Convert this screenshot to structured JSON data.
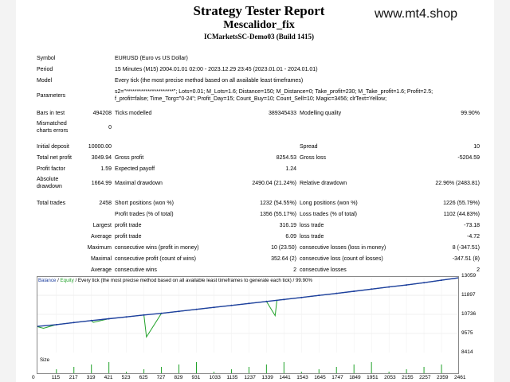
{
  "header": {
    "title": "Strategy Tester Report",
    "expert": "Mescalidor_fix",
    "server": "ICMarketsSC-Demo03 (Build 1415)",
    "watermark": "www.mt4.shop"
  },
  "info": {
    "symbol_label": "Symbol",
    "symbol_value": "EURUSD (Euro vs US Dollar)",
    "period_label": "Period",
    "period_value": "15 Minutes (M15) 2004.01.01 02:00 - 2023.12.29 23:45 (2023.01.01 - 2024.01.01)",
    "model_label": "Model",
    "model_value": "Every tick (the most precise method based on all available least timeframes)",
    "params_label": "Parameters",
    "params_value": "s2=\"**********************\"; Lots=0.01; M_Lots=1.6; Distance=150; M_Distance=0; Take_profit=230; M_Take_profit=1.6; Profit=2.5; f_profit=false; Time_Torg=\"0-24\"; Profit_Day=15; Count_Buy=10; Count_Sell=10; Magic=3456; clrText=Yellow;"
  },
  "bars": {
    "bars_label": "Bars in test",
    "bars_value": "494208",
    "ticks_label": "Ticks modelled",
    "ticks_value": "389345433",
    "quality_label": "Modelling quality",
    "quality_value": "99.90%",
    "mismatch_label": "Mismatched charts errors",
    "mismatch_value": "0"
  },
  "stats": {
    "initial_deposit_label": "Initial deposit",
    "initial_deposit_value": "10000.00",
    "spread_label": "Spread",
    "spread_value": "10",
    "net_profit_label": "Total net profit",
    "net_profit_value": "3049.94",
    "gross_profit_label": "Gross profit",
    "gross_profit_value": "8254.53",
    "gross_loss_label": "Gross loss",
    "gross_loss_value": "-5204.59",
    "profit_factor_label": "Profit factor",
    "profit_factor_value": "1.59",
    "expected_payoff_label": "Expected payoff",
    "expected_payoff_value": "1.24",
    "abs_dd_label": "Absolute drawdown",
    "abs_dd_value": "1664.99",
    "max_dd_label": "Maximal drawdown",
    "max_dd_value": "2490.04 (21.24%)",
    "rel_dd_label": "Relative drawdown",
    "rel_dd_value": "22.96% (2483.81)"
  },
  "trades": {
    "total_label": "Total trades",
    "total_value": "2458",
    "short_label": "Short positions (won %)",
    "short_value": "1232 (54.55%)",
    "long_label": "Long positions (won %)",
    "long_value": "1226 (55.79%)",
    "profit_trades_label": "Profit trades (% of total)",
    "profit_trades_value": "1356 (55.17%)",
    "loss_trades_label": "Loss trades (% of total)",
    "loss_trades_value": "1102 (44.83%)",
    "largest_label": "Largest",
    "largest_profit_label": "profit trade",
    "largest_profit_value": "316.19",
    "largest_loss_label": "loss trade",
    "largest_loss_value": "-73.18",
    "average_label": "Average",
    "avg_profit_label": "profit trade",
    "avg_profit_value": "6.09",
    "avg_loss_label": "loss trade",
    "avg_loss_value": "-4.72",
    "maximum_label": "Maximum",
    "max_wins_label": "consecutive wins (profit in money)",
    "max_wins_value": "10 (23.50)",
    "max_losses_label": "consecutive losses (loss in money)",
    "max_losses_value": "8 (-347.51)",
    "maximal_label": "Maximal",
    "maximal_profit_label": "consecutive profit (count of wins)",
    "maximal_profit_value": "352.64 (2)",
    "maximal_loss_label": "consecutive loss (count of losses)",
    "maximal_loss_value": "-347.51 (8)",
    "average2_label": "Average",
    "avg_wins_label": "consecutive wins",
    "avg_wins_value": "2",
    "avg_losses_label": "consecutive losses",
    "avg_losses_value": "2"
  },
  "chart": {
    "legend_balance": "Balance",
    "legend_sep": " / ",
    "legend_equity": "Equity",
    "legend_rest": " / Every tick (the most precise method based on all available least timeframes to generate each tick) / 99.90%",
    "size_label": "Size",
    "balance_color": "#1e3f9f",
    "equity_color": "#22a22a"
  },
  "chart_data": {
    "type": "line",
    "x_ticks": [
      "0",
      "115",
      "217",
      "319",
      "421",
      "523",
      "625",
      "727",
      "829",
      "931",
      "1033",
      "1135",
      "1237",
      "1339",
      "1441",
      "1543",
      "1645",
      "1747",
      "1849",
      "1951",
      "2053",
      "2155",
      "2257",
      "2359",
      "2461"
    ],
    "y_ticks": [
      "13059",
      "11897",
      "10736",
      "9575",
      "8414"
    ],
    "ylim": [
      8414,
      13059
    ],
    "xlim": [
      0,
      2461
    ],
    "series": [
      {
        "name": "Balance",
        "x": [
          0,
          115,
          217,
          319,
          421,
          523,
          625,
          727,
          829,
          931,
          1033,
          1135,
          1237,
          1339,
          1441,
          1543,
          1645,
          1747,
          1849,
          1951,
          2053,
          2155,
          2257,
          2359,
          2461
        ],
        "values": [
          10000,
          10110,
          10240,
          10360,
          10470,
          10580,
          10700,
          10800,
          10920,
          11040,
          11160,
          11280,
          11400,
          11520,
          11640,
          11760,
          11890,
          12010,
          12140,
          12270,
          12400,
          12520,
          12660,
          12810,
          12960
        ]
      },
      {
        "name": "Equity",
        "x": [
          0,
          40,
          115,
          217,
          319,
          330,
          421,
          523,
          625,
          640,
          727,
          829,
          931,
          1033,
          1135,
          1237,
          1339,
          1390,
          1400,
          1441,
          1543,
          1645,
          1747,
          1849,
          1951,
          2053,
          2155,
          2257,
          2359,
          2461
        ],
        "values": [
          10000,
          9890,
          10110,
          10240,
          10360,
          10250,
          10470,
          10580,
          10700,
          9360,
          10800,
          10920,
          11040,
          11160,
          11280,
          11400,
          11520,
          10660,
          11600,
          11640,
          11760,
          11890,
          12010,
          12140,
          12270,
          12400,
          12520,
          12660,
          12810,
          12960
        ]
      }
    ]
  }
}
